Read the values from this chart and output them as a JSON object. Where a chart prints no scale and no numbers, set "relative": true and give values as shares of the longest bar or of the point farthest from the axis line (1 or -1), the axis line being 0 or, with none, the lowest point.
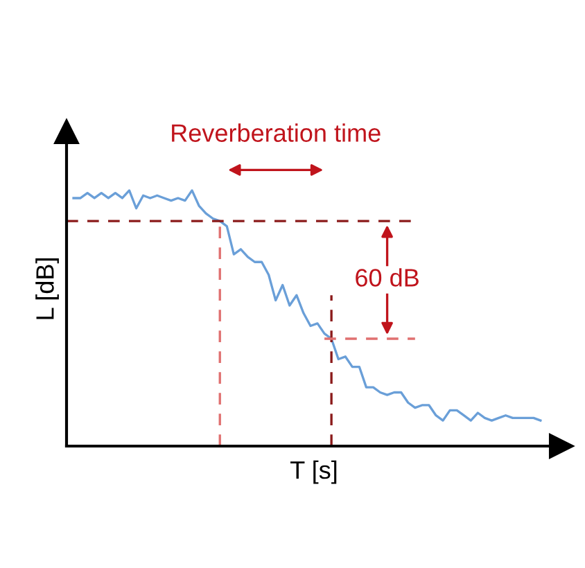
{
  "chart_data": {
    "type": "line",
    "relative": true,
    "xlabel": "T [s]",
    "ylabel": "L [dB]",
    "categories": [
      null,
      null,
      null,
      null,
      null,
      null,
      null,
      null,
      null,
      null,
      null,
      null,
      null,
      null,
      null,
      null,
      null,
      null,
      null,
      null,
      null,
      null,
      null,
      null,
      null,
      null,
      null,
      null,
      null,
      null,
      null,
      null,
      null,
      null,
      null,
      null,
      null,
      null,
      null,
      null,
      null,
      null,
      null,
      null,
      null,
      null,
      null,
      null,
      null,
      null,
      null,
      null,
      null,
      null,
      null,
      null,
      null,
      null,
      null,
      null,
      null,
      null,
      null,
      null,
      null,
      null,
      null,
      null
    ],
    "series": [
      {
        "color": "#6a9fd8",
        "values": [
          0.97,
          0.97,
          0.99,
          0.97,
          0.99,
          0.97,
          0.99,
          0.97,
          1.0,
          0.93,
          0.98,
          0.97,
          0.98,
          0.97,
          0.96,
          0.97,
          0.96,
          1.0,
          0.94,
          0.91,
          0.89,
          0.88,
          0.86,
          0.75,
          0.77,
          0.74,
          0.72,
          0.72,
          0.67,
          0.57,
          0.63,
          0.55,
          0.59,
          0.52,
          0.47,
          0.48,
          0.44,
          0.42,
          0.34,
          0.35,
          0.31,
          0.31,
          0.23,
          0.23,
          0.21,
          0.2,
          0.21,
          0.21,
          0.17,
          0.15,
          0.16,
          0.16,
          0.12,
          0.1,
          0.14,
          0.14,
          0.12,
          0.1,
          0.13,
          0.11,
          0.1,
          0.11,
          0.12,
          0.11,
          0.11,
          0.11,
          0.11,
          0.1
        ]
      }
    ],
    "ref_lines": [
      {
        "axis": "y",
        "value": 0.88,
        "color": "#8b1a1a",
        "line_style": "dashed"
      },
      {
        "axis": "y",
        "value": 0.42,
        "color": "#e07070",
        "line_style": "dashed"
      }
    ],
    "annotations": [
      "Reverberation time",
      "60 dB"
    ],
    "grid": false,
    "legend": false
  }
}
